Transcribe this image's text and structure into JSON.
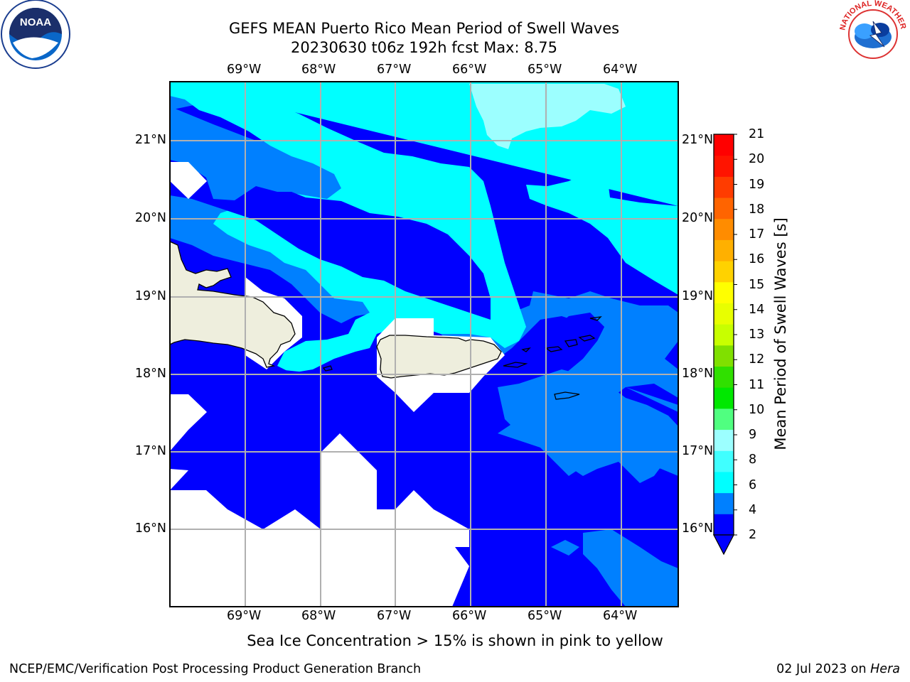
{
  "title": {
    "line1": "GEFS MEAN Puerto Rico Mean Period of Swell Waves",
    "line2": "20230630 t06z 192h fcst   Max: 8.75"
  },
  "map": {
    "lon_labels": [
      "69°W",
      "68°W",
      "67°W",
      "66°W",
      "65°W",
      "64°W"
    ],
    "lat_labels": [
      "21°N",
      "20°N",
      "19°N",
      "18°N",
      "17°N",
      "16°N"
    ],
    "land_color": "#eeeedd"
  },
  "colorbar": {
    "label": "Mean Period of Swell Waves [s]",
    "ticks": [
      "21",
      "20",
      "19",
      "18",
      "17",
      "16",
      "15",
      "14",
      "13",
      "12",
      "11",
      "10",
      "9",
      "8",
      "6",
      "4",
      "2"
    ],
    "colors_bottom_to_top": [
      "#0000ff",
      "#0080ff",
      "#00ffff",
      "#40ffff",
      "#9cffff",
      "#50ff80",
      "#00e800",
      "#30e000",
      "#80e000",
      "#c8ff00",
      "#e8ff00",
      "#ffff00",
      "#ffd200",
      "#ffb000",
      "#ff8c00",
      "#ff6400",
      "#ff3c00",
      "#ff1400",
      "#ff0000"
    ]
  },
  "note": "Sea Ice Concentration > 15% is shown in pink to yellow",
  "footer": {
    "left": "NCEP/EMC/Verification Post Processing Product Generation Branch",
    "right_date": "02 Jul 2023 on ",
    "right_host": "Hera"
  },
  "logos": {
    "noaa_text": "NOAA",
    "nws_ring_text": "NATIONAL WEATHER SERVICE"
  }
}
